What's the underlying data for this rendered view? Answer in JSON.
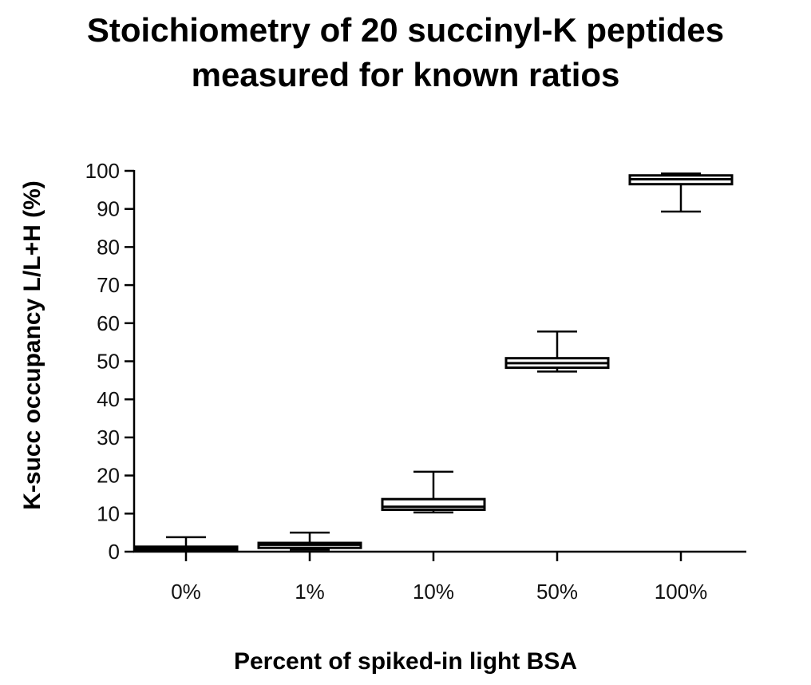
{
  "chart_data": {
    "type": "boxplot",
    "title_lines": [
      "Stoichiometry of 20 succinyl-K peptides",
      "measured for known ratios"
    ],
    "xlabel": "Percent of spiked-in light BSA",
    "ylabel": "K-succ occupancy L/L+H (%)",
    "ylim": [
      0,
      100
    ],
    "yticks": [
      "0",
      "10",
      "20",
      "30",
      "40",
      "50",
      "60",
      "70",
      "80",
      "90",
      "100"
    ],
    "categories": [
      "0%",
      "1%",
      "10%",
      "50%",
      "100%"
    ],
    "boxes": [
      {
        "category": "0%",
        "min": 0.3,
        "q1": 0.5,
        "median": 0.8,
        "q3": 1.3,
        "max": 3.8
      },
      {
        "category": "1%",
        "min": 0.5,
        "q1": 1.0,
        "median": 1.8,
        "q3": 2.3,
        "max": 5.0
      },
      {
        "category": "10%",
        "min": 10.3,
        "q1": 11.0,
        "median": 11.8,
        "q3": 13.8,
        "max": 21.0
      },
      {
        "category": "50%",
        "min": 47.3,
        "q1": 48.3,
        "median": 49.5,
        "q3": 50.8,
        "max": 57.8
      },
      {
        "category": "100%",
        "min": 89.3,
        "q1": 96.5,
        "median": 97.8,
        "q3": 98.8,
        "max": 99.3
      }
    ],
    "grid": false,
    "legend": "none"
  }
}
